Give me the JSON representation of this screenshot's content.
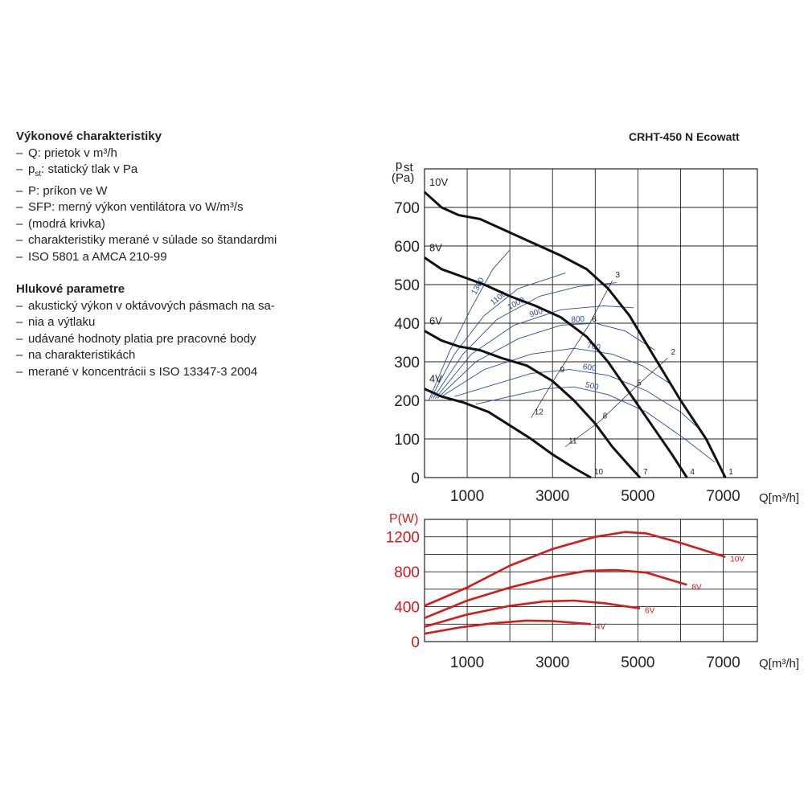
{
  "left_text": {
    "performance": {
      "title": "Výkonové charakteristiky",
      "items": [
        "Q: prietok v m³/h",
        "pst: statický tlak v Pa",
        "P: príkon ve W",
        "SFP: merný výkon ventilátora vo W/m³/s",
        "(modrá krivka)",
        "charakteristiky merané v súlade so štandardmi",
        "ISO 5801 a AMCA 210-99"
      ]
    },
    "noise": {
      "title": "Hlukové parametre",
      "items": [
        "akustický výkon v oktávových pásmach na sa-",
        "nia a výtlaku",
        "udávané hodnoty platia pre pracovné body",
        "na charakteristikách",
        "merané v koncentrácii s ISO 13347-3 2004"
      ]
    }
  },
  "chart_title": "CRHT-450 N Ecowatt",
  "chart_data": [
    {
      "type": "line",
      "ylabel_main": "p",
      "ylabel_sub": "st",
      "ylabel_unit": "(Pa)",
      "xlabel": "Q[m³/h]",
      "x_ticks": [
        "1000",
        "3000",
        "5000",
        "7000"
      ],
      "y_ticks": [
        "0",
        "100",
        "200",
        "300",
        "400",
        "500",
        "600",
        "700"
      ],
      "xlim": [
        0,
        7800
      ],
      "ylim": [
        0,
        800
      ],
      "grid": true,
      "series": [
        {
          "name": "10V",
          "points": [
            [
              0,
              740
            ],
            [
              400,
              700
            ],
            [
              800,
              680
            ],
            [
              1300,
              670
            ],
            [
              1800,
              645
            ],
            [
              2500,
              610
            ],
            [
              3200,
              575
            ],
            [
              3800,
              540
            ],
            [
              4300,
              490
            ],
            [
              4800,
              420
            ],
            [
              5400,
              310
            ],
            [
              6000,
              200
            ],
            [
              6600,
              100
            ],
            [
              7050,
              0
            ]
          ]
        },
        {
          "name": "8V",
          "points": [
            [
              0,
              570
            ],
            [
              400,
              540
            ],
            [
              900,
              520
            ],
            [
              1400,
              500
            ],
            [
              2000,
              470
            ],
            [
              2600,
              445
            ],
            [
              3200,
              415
            ],
            [
              3800,
              365
            ],
            [
              4300,
              300
            ],
            [
              4800,
              220
            ],
            [
              5300,
              140
            ],
            [
              5800,
              60
            ],
            [
              6150,
              0
            ]
          ]
        },
        {
          "name": "6V",
          "points": [
            [
              0,
              380
            ],
            [
              400,
              355
            ],
            [
              800,
              340
            ],
            [
              1300,
              330
            ],
            [
              1800,
              310
            ],
            [
              2400,
              290
            ],
            [
              3000,
              250
            ],
            [
              3500,
              200
            ],
            [
              4000,
              140
            ],
            [
              4400,
              80
            ],
            [
              4800,
              30
            ],
            [
              5050,
              0
            ]
          ]
        },
        {
          "name": "4V",
          "points": [
            [
              0,
              230
            ],
            [
              400,
              210
            ],
            [
              900,
              195
            ],
            [
              1500,
              170
            ],
            [
              2000,
              135
            ],
            [
              2500,
              100
            ],
            [
              3000,
              60
            ],
            [
              3500,
              25
            ],
            [
              3900,
              0
            ]
          ]
        }
      ],
      "sfp_curves": [
        {
          "name": "1300",
          "points": [
            [
              100,
              200
            ],
            [
              600,
              330
            ],
            [
              1100,
              440
            ],
            [
              1600,
              540
            ],
            [
              2000,
              590
            ]
          ]
        },
        {
          "name": "1100",
          "points": [
            [
              150,
              205
            ],
            [
              700,
              320
            ],
            [
              1400,
              420
            ],
            [
              2200,
              490
            ],
            [
              3300,
              530
            ]
          ]
        },
        {
          "name": "1000",
          "points": [
            [
              200,
              205
            ],
            [
              900,
              320
            ],
            [
              1700,
              410
            ],
            [
              2700,
              470
            ],
            [
              3600,
              495
            ],
            [
              4500,
              505
            ]
          ]
        },
        {
          "name": "900",
          "points": [
            [
              250,
              205
            ],
            [
              1100,
              320
            ],
            [
              2100,
              395
            ],
            [
              3200,
              435
            ],
            [
              4200,
              445
            ],
            [
              4900,
              440
            ]
          ]
        },
        {
          "name": "800",
          "points": [
            [
              300,
              205
            ],
            [
              1200,
              300
            ],
            [
              2200,
              360
            ],
            [
              3200,
              395
            ],
            [
              4000,
              400
            ],
            [
              4700,
              380
            ],
            [
              5400,
              330
            ]
          ]
        },
        {
          "name": "700",
          "points": [
            [
              400,
              210
            ],
            [
              1400,
              280
            ],
            [
              2500,
              320
            ],
            [
              3500,
              335
            ],
            [
              4400,
              320
            ],
            [
              5100,
              290
            ],
            [
              5800,
              240
            ]
          ]
        },
        {
          "name": "600",
          "points": [
            [
              700,
              210
            ],
            [
              1600,
              240
            ],
            [
              2500,
              270
            ],
            [
              3400,
              280
            ],
            [
              4300,
              265
            ],
            [
              5200,
              225
            ],
            [
              6000,
              170
            ],
            [
              6500,
              120
            ]
          ]
        },
        {
          "name": "500",
          "points": [
            [
              1200,
              190
            ],
            [
              2000,
              210
            ],
            [
              2800,
              230
            ],
            [
              3500,
              235
            ],
            [
              4300,
              215
            ],
            [
              5200,
              170
            ],
            [
              6100,
              100
            ],
            [
              6800,
              40
            ]
          ]
        }
      ],
      "operating_points": [
        {
          "label": "1",
          "x": 7050,
          "y": 0
        },
        {
          "label": "2",
          "x": 5700,
          "y": 310
        },
        {
          "label": "3",
          "x": 4400,
          "y": 510
        },
        {
          "label": "4",
          "x": 6150,
          "y": 0
        },
        {
          "label": "5",
          "x": 4900,
          "y": 230
        },
        {
          "label": "6",
          "x": 3850,
          "y": 395
        },
        {
          "label": "7",
          "x": 5050,
          "y": 0
        },
        {
          "label": "8",
          "x": 4100,
          "y": 145
        },
        {
          "label": "9",
          "x": 3100,
          "y": 265
        },
        {
          "label": "10",
          "x": 3900,
          "y": 0
        },
        {
          "label": "11",
          "x": 3300,
          "y": 80
        },
        {
          "label": "12",
          "x": 2500,
          "y": 155
        }
      ]
    },
    {
      "type": "line",
      "ylabel": "P(W)",
      "xlabel": "Q[m³/h]",
      "x_ticks": [
        "1000",
        "3000",
        "5000",
        "7000"
      ],
      "y_ticks": [
        "0",
        "400",
        "800",
        "1200"
      ],
      "xlim": [
        0,
        7800
      ],
      "ylim": [
        0,
        1400
      ],
      "grid": true,
      "series": [
        {
          "name": "10V",
          "points": [
            [
              0,
              410
            ],
            [
              1000,
              620
            ],
            [
              2000,
              870
            ],
            [
              3000,
              1060
            ],
            [
              4000,
              1200
            ],
            [
              4700,
              1255
            ],
            [
              5200,
              1240
            ],
            [
              6000,
              1130
            ],
            [
              7050,
              970
            ]
          ]
        },
        {
          "name": "8V",
          "points": [
            [
              0,
              270
            ],
            [
              1000,
              470
            ],
            [
              2000,
              620
            ],
            [
              3000,
              740
            ],
            [
              3800,
              810
            ],
            [
              4500,
              820
            ],
            [
              5200,
              790
            ],
            [
              6150,
              650
            ]
          ]
        },
        {
          "name": "6V",
          "points": [
            [
              0,
              170
            ],
            [
              1000,
              310
            ],
            [
              2000,
              410
            ],
            [
              2800,
              460
            ],
            [
              3500,
              470
            ],
            [
              4200,
              440
            ],
            [
              5050,
              380
            ]
          ]
        },
        {
          "name": "4V",
          "points": [
            [
              0,
              90
            ],
            [
              800,
              160
            ],
            [
              1600,
              210
            ],
            [
              2400,
              240
            ],
            [
              3000,
              235
            ],
            [
              3900,
              200
            ]
          ]
        }
      ]
    }
  ]
}
